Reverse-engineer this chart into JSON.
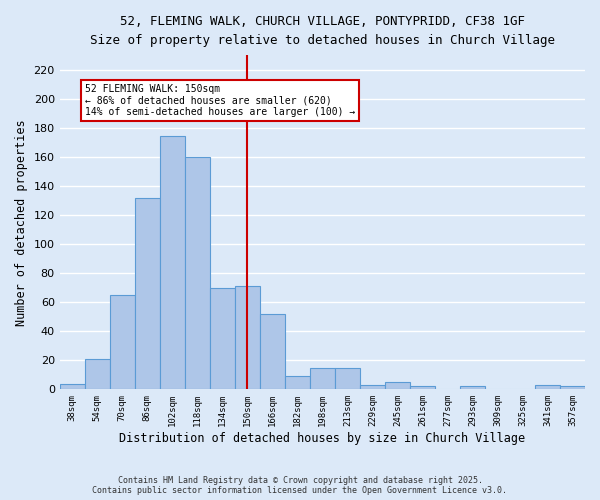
{
  "title_line1": "52, FLEMING WALK, CHURCH VILLAGE, PONTYPRIDD, CF38 1GF",
  "title_line2": "Size of property relative to detached houses in Church Village",
  "xlabel": "Distribution of detached houses by size in Church Village",
  "ylabel": "Number of detached properties",
  "categories": [
    "38sqm",
    "54sqm",
    "70sqm",
    "86sqm",
    "102sqm",
    "118sqm",
    "134sqm",
    "150sqm",
    "166sqm",
    "182sqm",
    "198sqm",
    "213sqm",
    "229sqm",
    "245sqm",
    "261sqm",
    "277sqm",
    "293sqm",
    "309sqm",
    "325sqm",
    "341sqm",
    "357sqm"
  ],
  "values": [
    4,
    21,
    65,
    132,
    174,
    160,
    70,
    71,
    52,
    9,
    15,
    15,
    3,
    5,
    2,
    0,
    2,
    0,
    0,
    3,
    2
  ],
  "bar_color": "#aec6e8",
  "bar_edge_color": "#5b9bd5",
  "vline_x_idx": 7,
  "vline_color": "#cc0000",
  "annotation_line1": "52 FLEMING WALK: 150sqm",
  "annotation_line2": "← 86% of detached houses are smaller (620)",
  "annotation_line3": "14% of semi-detached houses are larger (100) →",
  "annotation_box_color": "#ffffff",
  "annotation_box_edge": "#cc0000",
  "ylim": [
    0,
    230
  ],
  "yticks": [
    0,
    20,
    40,
    60,
    80,
    100,
    120,
    140,
    160,
    180,
    200,
    220
  ],
  "footer_line1": "Contains HM Land Registry data © Crown copyright and database right 2025.",
  "footer_line2": "Contains public sector information licensed under the Open Government Licence v3.0.",
  "background_color": "#dce9f8",
  "plot_bg_color": "#dce9f8",
  "grid_color": "#ffffff"
}
